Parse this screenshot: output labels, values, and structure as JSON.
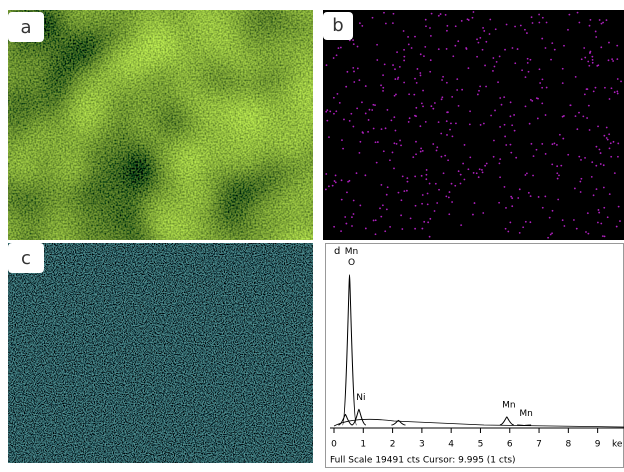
{
  "panels": [
    {
      "label": "a"
    },
    {
      "label": "b"
    },
    {
      "label": "c"
    },
    {
      "label": "d"
    }
  ],
  "spectrum": {
    "xlim": [
      0,
      9.9
    ],
    "ylim": [
      0,
      19491
    ],
    "xticks": [
      0,
      1,
      2,
      3,
      4,
      5,
      6,
      7,
      8,
      9
    ],
    "x_unit": "ke",
    "peaks": [
      {
        "x": 0.39,
        "counts": 1600
      },
      {
        "x": 0.53,
        "counts": 18000,
        "labels": [
          "Mn",
          "O"
        ]
      },
      {
        "x": 0.85,
        "counts": 2200,
        "labels": [
          "Ni"
        ]
      },
      {
        "x": 2.2,
        "counts": 900
      },
      {
        "x": 5.9,
        "counts": 1300,
        "labels": [
          "Mn"
        ]
      },
      {
        "x": 6.49,
        "counts": 300,
        "labels": [
          "Mn"
        ]
      }
    ],
    "footer": "Full Scale 19491 cts Cursor: 9.995 (1 cts)"
  }
}
